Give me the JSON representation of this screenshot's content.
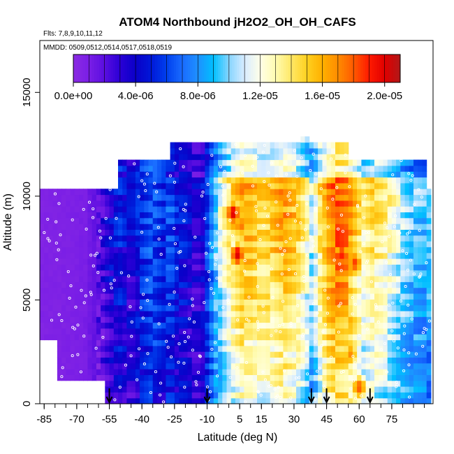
{
  "chart_data": {
    "type": "heatmap",
    "title": "ATOM4 Northbound jH2O2_OH_OH_CAFS",
    "subtitle_flights": "Flts: 7,8,9,10,11,12",
    "subtitle_dates": "MMDD: 0509,0512,0514,0517,0518,0519",
    "xlabel": "Latitude (deg N)",
    "ylabel": "Altitude (m)",
    "xlim": [
      -87,
      94
    ],
    "ylim": [
      0,
      17500
    ],
    "x_tick_labels": [
      "-85",
      "-70",
      "-55",
      "-40",
      "-25",
      "-10",
      "5",
      "15",
      "30",
      "45",
      "60",
      "75"
    ],
    "x_tick_values": [
      -85,
      -70,
      -55,
      -40,
      -25,
      -10,
      5,
      15,
      30,
      45,
      60,
      75
    ],
    "y_tick_labels": [
      "0",
      "5000",
      "10000",
      "15000"
    ],
    "y_tick_values": [
      0,
      5000,
      10000,
      15000
    ],
    "colorbar": {
      "range": [
        0,
        2.1e-05
      ],
      "tick_labels": [
        "0.0e+00",
        "4.0e-06",
        "8.0e-06",
        "1.2e-05",
        "1.6e-05",
        "2.0e-05"
      ],
      "tick_values": [
        0,
        4e-06,
        8e-06,
        1.2e-05,
        1.6e-05,
        2e-05
      ],
      "colors": [
        "#8a2be2",
        "#7a1ee6",
        "#5a0ee0",
        "#2a00d6",
        "#0a00c8",
        "#0018d8",
        "#0040ee",
        "#1a6cff",
        "#1e90ff",
        "#00bfff",
        "#87d5ff",
        "#d8ecff",
        "#ffffe8",
        "#fffbb0",
        "#ffe866",
        "#ffd020",
        "#ffb000",
        "#ff8c00",
        "#ff5a00",
        "#ff1a00",
        "#e00000",
        "#b01818"
      ]
    },
    "arrow_latitudes": [
      -55,
      -10,
      38,
      45,
      65
    ],
    "profile_lat_nodes": [
      -87,
      -78,
      -66,
      -60,
      -55,
      -50,
      -45,
      -40,
      -35,
      -30,
      -27,
      -24,
      -20,
      -15,
      -12,
      -9,
      -6,
      -3,
      0,
      3,
      6,
      10,
      15,
      20,
      25,
      30,
      35,
      38,
      40,
      42,
      46,
      50,
      54,
      58,
      62,
      66,
      70,
      75,
      80,
      85,
      92
    ],
    "profile_values_e6": [
      0.4,
      0.5,
      0.8,
      1.8,
      3.5,
      4.5,
      3.2,
      5.0,
      6.0,
      5.0,
      6.0,
      4.5,
      4.2,
      3.0,
      3.8,
      6.5,
      9.0,
      11.0,
      12.5,
      13.5,
      14.5,
      14.5,
      13.5,
      14.0,
      15.0,
      14.0,
      12.0,
      10.0,
      11.0,
      13.0,
      15.5,
      16.5,
      16.0,
      14.0,
      12.0,
      13.0,
      12.5,
      11.5,
      10.0,
      9.0,
      8.5
    ],
    "coverage": [
      {
        "alt": [
          0,
          1200
        ],
        "lat": [
          -56,
          92
        ]
      },
      {
        "alt": [
          1200,
          3200
        ],
        "lat": [
          -78,
          92
        ]
      },
      {
        "alt": [
          3200,
          10500
        ],
        "lat": [
          -87,
          93
        ]
      },
      {
        "alt": [
          10500,
          11900
        ],
        "lat": [
          -50,
          90
        ]
      },
      {
        "alt": [
          11900,
          12500
        ],
        "lat": [
          -27,
          55
        ]
      },
      {
        "alt": [
          12500,
          13000
        ],
        "lat": [
          33,
          36
        ]
      }
    ],
    "hotspots": [
      {
        "lat": 2,
        "alt": 9200,
        "value_e6": 20.0
      },
      {
        "lat": 4,
        "alt": 7200,
        "value_e6": 20.0
      },
      {
        "lat": 52,
        "alt": 7200,
        "value_e6": 19.0
      },
      {
        "lat": 58,
        "alt": 6800,
        "value_e6": 18.5
      },
      {
        "lat": 56,
        "alt": 2400,
        "value_e6": 17.0
      },
      {
        "lat": 60,
        "alt": 800,
        "value_e6": 18.0
      }
    ]
  }
}
